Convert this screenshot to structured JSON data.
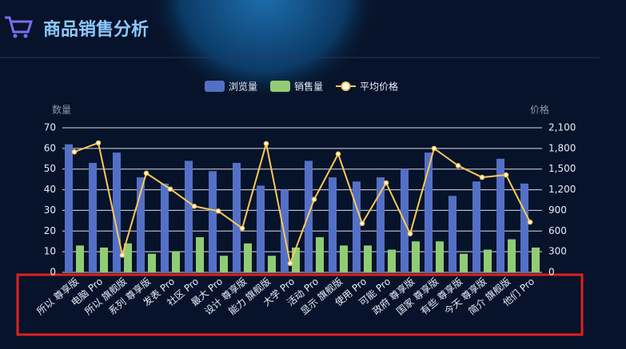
{
  "chart_data": {
    "type": "bar_line",
    "title": "商品销售分析",
    "y_label": "数量",
    "y2_label": "价格",
    "categories": [
      "所以 尊享版",
      "电脑 Pro",
      "所以 旗舰版",
      "系列 尊享版",
      "发表 Pro",
      "社区 Pro",
      "最大 Pro",
      "设计 尊享版",
      "能力 旗舰版",
      "大学 Pro",
      "活动 Pro",
      "显示 旗舰版",
      "使用 Pro",
      "可能 Pro",
      "政府 尊享版",
      "国家 尊享版",
      "有些 尊享版",
      "今天 尊享版",
      "简介 旗舰版",
      "他们 Pro"
    ],
    "series": [
      {
        "name": "浏览量",
        "color": "#5470c6",
        "kind": "bar",
        "values": [
          62,
          53,
          58,
          46,
          43,
          54,
          49,
          53,
          42,
          40,
          54,
          46,
          44,
          46,
          50,
          58,
          37,
          44,
          55,
          43
        ]
      },
      {
        "name": "销售量",
        "color": "#91cc75",
        "kind": "bar",
        "values": [
          13,
          12,
          14,
          9,
          10,
          17,
          8,
          14,
          8,
          12,
          17,
          13,
          13,
          11,
          15,
          15,
          9,
          11,
          16,
          12
        ]
      },
      {
        "name": "平均价格",
        "color": "#fac858",
        "kind": "line",
        "axis": "y2",
        "values": [
          1750,
          1880,
          250,
          1440,
          1210,
          960,
          890,
          640,
          1870,
          130,
          1060,
          1720,
          710,
          1300,
          560,
          1800,
          1550,
          1380,
          1415,
          730
        ]
      }
    ],
    "ylim": [
      0,
      70
    ],
    "yticks": [
      0,
      10,
      20,
      30,
      40,
      50,
      60,
      70
    ],
    "y2lim": [
      0,
      2100
    ],
    "y2ticks": [
      0,
      300,
      600,
      900,
      {
        "value": 1200,
        "label": "1,200"
      },
      {
        "value": 1500,
        "label": "1,500"
      },
      {
        "value": 1800,
        "label": "1,800"
      },
      {
        "value": 2100,
        "label": "2,100"
      }
    ],
    "grid": true
  }
}
